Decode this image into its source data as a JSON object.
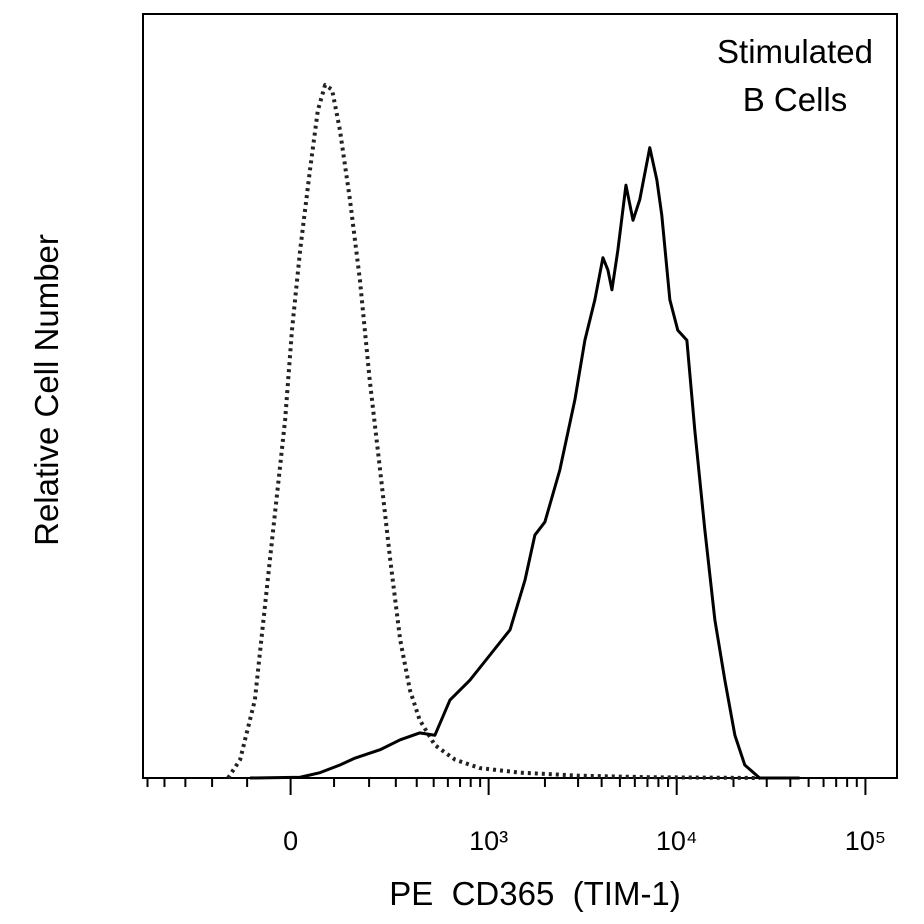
{
  "chart_data": {
    "type": "line",
    "annotation": [
      "Stimulated",
      "B Cells"
    ],
    "xlabel": "PE  CD365  (TIM-1)",
    "ylabel": "Relative Cell Number",
    "xscale": "biexponential",
    "xlim": [
      -530,
      147000
    ],
    "xticks": [
      {
        "value": 0,
        "label": "0"
      },
      {
        "value": 1000,
        "label": "10³"
      },
      {
        "value": 10000,
        "label": "10⁴"
      },
      {
        "value": 100000,
        "label": "10⁵"
      }
    ],
    "xminor_ticks": [
      -500,
      -400,
      -300,
      -200,
      -100,
      100,
      200,
      300,
      400,
      500,
      600,
      700,
      800,
      900,
      2000,
      3000,
      4000,
      5000,
      6000,
      7000,
      8000,
      9000,
      20000,
      30000,
      40000,
      50000,
      60000,
      70000,
      80000,
      90000
    ],
    "ylim": [
      0,
      100
    ],
    "series": [
      {
        "color": "#222222",
        "style": "dotted",
        "x": [
          -151,
          -118,
          -81,
          -46,
          -12,
          3,
          21,
          43,
          61,
          78,
          95,
          115,
          142,
          171,
          202,
          238,
          277,
          319,
          365,
          416,
          508,
          657,
          896,
          1472,
          3060,
          7200,
          27500
        ],
        "values": [
          0,
          2.4,
          10.2,
          28.5,
          46.9,
          58.6,
          69.1,
          79.6,
          87.4,
          90.7,
          90.1,
          84.8,
          75.7,
          65.2,
          52.1,
          40.3,
          28.5,
          18.1,
          11.5,
          7.6,
          4.3,
          2.4,
          1.3,
          0.7,
          0.3,
          0.1,
          0
        ]
      },
      {
        "color": "#000000",
        "style": "solid",
        "x": [
          -93,
          21,
          66,
          115,
          156,
          238,
          319,
          416,
          508,
          616,
          792,
          1017,
          1303,
          1566,
          1768,
          1998,
          2399,
          2885,
          3260,
          3683,
          4063,
          4318,
          4536,
          4878,
          5382,
          5868,
          6372,
          7200,
          7848,
          8334,
          9198,
          10134,
          11322,
          12474,
          14094,
          15930,
          18000,
          20340,
          22950,
          27500,
          44820
        ],
        "values": [
          0,
          0.1,
          0.7,
          1.7,
          2.6,
          3.7,
          5.0,
          5.9,
          5.6,
          10.2,
          12.8,
          16.1,
          19.4,
          25.9,
          31.8,
          33.5,
          40.3,
          49.5,
          57.3,
          62.6,
          68.1,
          66.5,
          63.9,
          69.1,
          77.6,
          73.0,
          75.7,
          82.5,
          78.3,
          73.7,
          62.6,
          58.6,
          57.3,
          45.5,
          32.5,
          20.7,
          12.8,
          5.6,
          1.7,
          0,
          0
        ]
      }
    ]
  }
}
